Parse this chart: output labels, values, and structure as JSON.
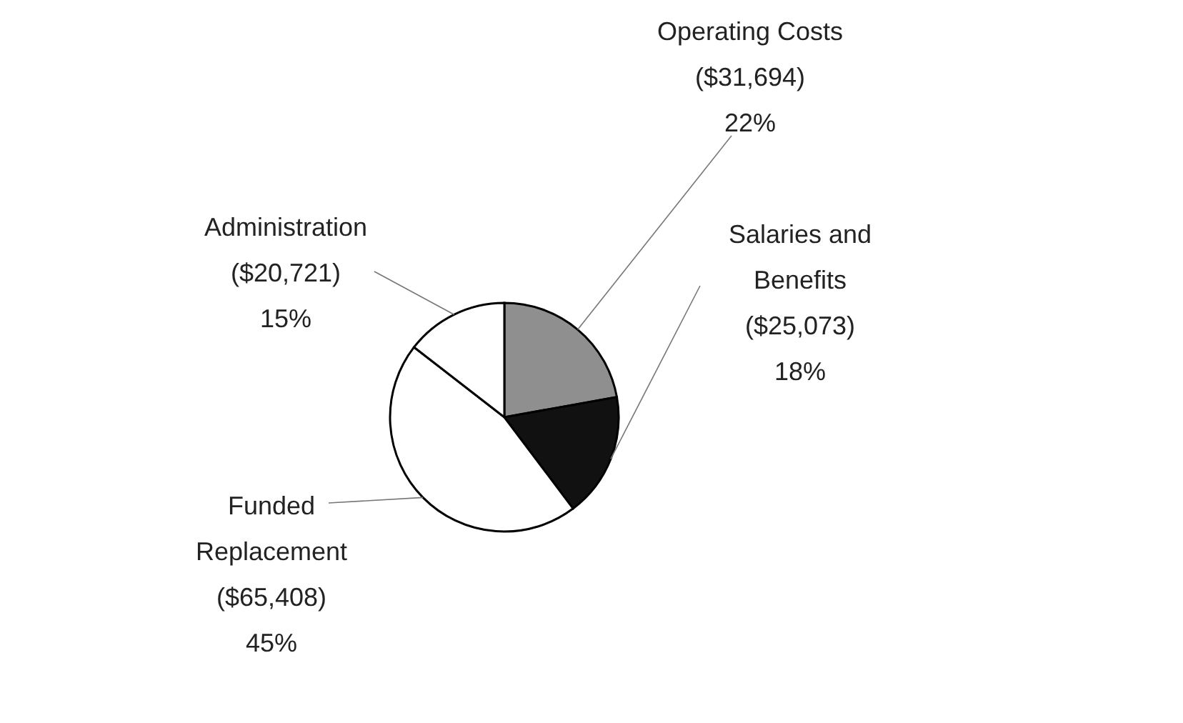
{
  "chart_data": {
    "type": "pie",
    "categories": [
      "Operating Costs",
      "Salaries and Benefits",
      "Funded Replacement",
      "Administration"
    ],
    "values": [
      31694,
      25073,
      65408,
      20721
    ],
    "value_labels": [
      "($31,694)\n22%",
      "($25,073)\n18%",
      "($65,408)\n45%",
      "($20,721)\n15%"
    ],
    "colors": [
      "#8f8f8f",
      "#111111",
      "#ffffff",
      "#ffffff"
    ],
    "legend": false
  }
}
